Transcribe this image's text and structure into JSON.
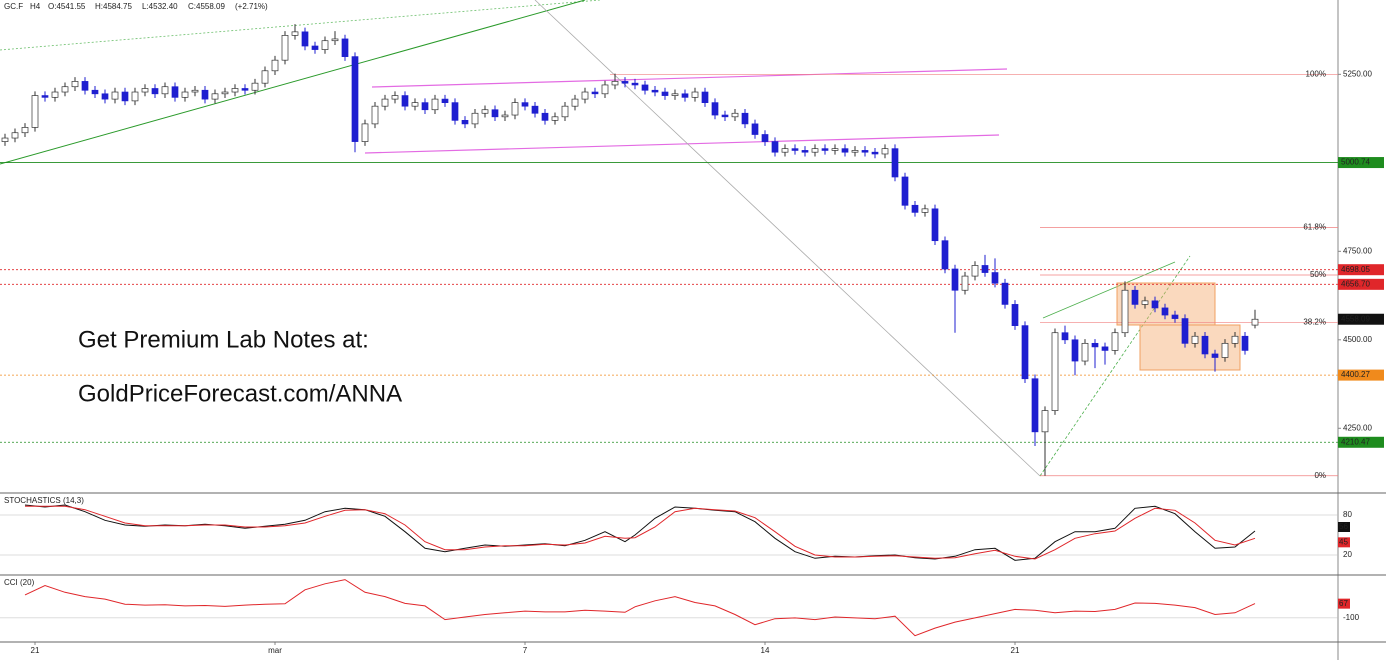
{
  "header": {
    "symbol": "GC.F",
    "timeframe": "H4",
    "ohlc": [
      "O:4541.55",
      "H:4584.75",
      "L:4532.40",
      "C:4558.09"
    ],
    "change": "(+2.71%)"
  },
  "promo": [
    "Get Premium Lab Notes at:",
    "GoldPriceForecast.com/ANNA"
  ],
  "chart_data": [
    {
      "type": "candlestick",
      "categories": [
        null,
        null,
        null,
        "21",
        null,
        null,
        null,
        null,
        null,
        null,
        null,
        null,
        null,
        null,
        null,
        null,
        null,
        null,
        null,
        null,
        null,
        null,
        null,
        null,
        null,
        null,
        null,
        "mar",
        null,
        null,
        null,
        null,
        null,
        null,
        null,
        null,
        null,
        null,
        null,
        null,
        null,
        null,
        null,
        null,
        null,
        null,
        null,
        null,
        null,
        null,
        null,
        null,
        "7",
        null,
        null,
        null,
        null,
        null,
        null,
        null,
        null,
        null,
        null,
        null,
        null,
        null,
        null,
        null,
        null,
        null,
        null,
        null,
        null,
        null,
        null,
        null,
        "14",
        null,
        null,
        null,
        null,
        null,
        null,
        null,
        null,
        null,
        null,
        null,
        null,
        null,
        null,
        null,
        null,
        null,
        null,
        null,
        null,
        null,
        null,
        null,
        null,
        "21",
        null,
        null,
        null,
        null,
        null,
        null,
        null,
        null,
        null,
        null,
        null,
        null,
        null,
        null,
        null,
        null,
        null,
        null,
        null,
        null,
        null,
        null,
        null,
        null
      ],
      "candles": [
        [
          5060,
          5082,
          5048,
          5070
        ],
        [
          5070,
          5097,
          5058,
          5085
        ],
        [
          5085,
          5112,
          5073,
          5100
        ],
        [
          5100,
          5202,
          5088,
          5190
        ],
        [
          5190,
          5202,
          5173,
          5185
        ],
        [
          5185,
          5212,
          5173,
          5200
        ],
        [
          5200,
          5227,
          5188,
          5215
        ],
        [
          5215,
          5242,
          5203,
          5230
        ],
        [
          5230,
          5242,
          5193,
          5205
        ],
        [
          5205,
          5217,
          5183,
          5195
        ],
        [
          5195,
          5207,
          5168,
          5180
        ],
        [
          5180,
          5212,
          5168,
          5200
        ],
        [
          5200,
          5212,
          5163,
          5175
        ],
        [
          5175,
          5212,
          5163,
          5200
        ],
        [
          5200,
          5222,
          5188,
          5210
        ],
        [
          5210,
          5222,
          5183,
          5195
        ],
        [
          5195,
          5227,
          5183,
          5215
        ],
        [
          5215,
          5227,
          5173,
          5185
        ],
        [
          5185,
          5212,
          5173,
          5200
        ],
        [
          5200,
          5217,
          5188,
          5205
        ],
        [
          5205,
          5217,
          5168,
          5180
        ],
        [
          5180,
          5207,
          5168,
          5195
        ],
        [
          5195,
          5212,
          5183,
          5200
        ],
        [
          5200,
          5222,
          5188,
          5210
        ],
        [
          5210,
          5222,
          5193,
          5205
        ],
        [
          5205,
          5237,
          5193,
          5225
        ],
        [
          5225,
          5272,
          5213,
          5260
        ],
        [
          5260,
          5302,
          5248,
          5290
        ],
        [
          5290,
          5372,
          5278,
          5360
        ],
        [
          5360,
          5392,
          5348,
          5370
        ],
        [
          5370,
          5382,
          5318,
          5330
        ],
        [
          5330,
          5342,
          5308,
          5320
        ],
        [
          5320,
          5357,
          5308,
          5345
        ],
        [
          5345,
          5372,
          5333,
          5350
        ],
        [
          5350,
          5362,
          5288,
          5300
        ],
        [
          5300,
          5312,
          5030,
          5060
        ],
        [
          5060,
          5122,
          5048,
          5110
        ],
        [
          5110,
          5172,
          5098,
          5160
        ],
        [
          5160,
          5192,
          5148,
          5180
        ],
        [
          5180,
          5202,
          5168,
          5190
        ],
        [
          5190,
          5202,
          5148,
          5160
        ],
        [
          5160,
          5182,
          5148,
          5170
        ],
        [
          5170,
          5182,
          5138,
          5150
        ],
        [
          5150,
          5192,
          5138,
          5180
        ],
        [
          5180,
          5192,
          5158,
          5170
        ],
        [
          5170,
          5182,
          5108,
          5120
        ],
        [
          5120,
          5132,
          5098,
          5110
        ],
        [
          5110,
          5152,
          5098,
          5140
        ],
        [
          5140,
          5162,
          5128,
          5150
        ],
        [
          5150,
          5162,
          5118,
          5130
        ],
        [
          5130,
          5147,
          5118,
          5135
        ],
        [
          5135,
          5182,
          5123,
          5170
        ],
        [
          5170,
          5182,
          5148,
          5160
        ],
        [
          5160,
          5172,
          5128,
          5140
        ],
        [
          5140,
          5152,
          5108,
          5120
        ],
        [
          5120,
          5142,
          5108,
          5130
        ],
        [
          5130,
          5172,
          5118,
          5160
        ],
        [
          5160,
          5192,
          5148,
          5180
        ],
        [
          5180,
          5212,
          5168,
          5200
        ],
        [
          5200,
          5212,
          5183,
          5195
        ],
        [
          5195,
          5232,
          5183,
          5220
        ],
        [
          5220,
          5252,
          5208,
          5230
        ],
        [
          5230,
          5242,
          5213,
          5225
        ],
        [
          5225,
          5237,
          5208,
          5220
        ],
        [
          5220,
          5232,
          5193,
          5205
        ],
        [
          5205,
          5217,
          5188,
          5200
        ],
        [
          5200,
          5212,
          5178,
          5190
        ],
        [
          5190,
          5207,
          5178,
          5195
        ],
        [
          5195,
          5207,
          5173,
          5185
        ],
        [
          5185,
          5212,
          5173,
          5200
        ],
        [
          5200,
          5212,
          5158,
          5170
        ],
        [
          5170,
          5182,
          5123,
          5135
        ],
        [
          5135,
          5147,
          5118,
          5130
        ],
        [
          5130,
          5152,
          5118,
          5140
        ],
        [
          5140,
          5152,
          5098,
          5110
        ],
        [
          5110,
          5122,
          5068,
          5080
        ],
        [
          5080,
          5092,
          5048,
          5060
        ],
        [
          5060,
          5072,
          5018,
          5030
        ],
        [
          5030,
          5052,
          5018,
          5040
        ],
        [
          5040,
          5052,
          5023,
          5035
        ],
        [
          5035,
          5047,
          5018,
          5030
        ],
        [
          5030,
          5052,
          5018,
          5040
        ],
        [
          5040,
          5052,
          5023,
          5035
        ],
        [
          5035,
          5052,
          5023,
          5040
        ],
        [
          5040,
          5052,
          5018,
          5030
        ],
        [
          5030,
          5047,
          5018,
          5035
        ],
        [
          5035,
          5047,
          5018,
          5030
        ],
        [
          5030,
          5042,
          5013,
          5025
        ],
        [
          5025,
          5052,
          5013,
          5040
        ],
        [
          5040,
          5052,
          4948,
          4960
        ],
        [
          4960,
          4972,
          4868,
          4880
        ],
        [
          4880,
          4892,
          4848,
          4860
        ],
        [
          4860,
          4882,
          4848,
          4870
        ],
        [
          4870,
          4882,
          4768,
          4780
        ],
        [
          4780,
          4792,
          4688,
          4700
        ],
        [
          4700,
          4712,
          4520,
          4640
        ],
        [
          4640,
          4692,
          4628,
          4680
        ],
        [
          4680,
          4722,
          4668,
          4710
        ],
        [
          4710,
          4740,
          4678,
          4690
        ],
        [
          4690,
          4730,
          4648,
          4660
        ],
        [
          4660,
          4672,
          4588,
          4600
        ],
        [
          4600,
          4612,
          4528,
          4540
        ],
        [
          4540,
          4552,
          4378,
          4390
        ],
        [
          4390,
          4402,
          4200,
          4240
        ],
        [
          4240,
          4312,
          4116,
          4300
        ],
        [
          4300,
          4532,
          4288,
          4520
        ],
        [
          4520,
          4540,
          4488,
          4500
        ],
        [
          4500,
          4512,
          4400,
          4440
        ],
        [
          4440,
          4502,
          4428,
          4490
        ],
        [
          4490,
          4502,
          4420,
          4480
        ],
        [
          4480,
          4492,
          4430,
          4470
        ],
        [
          4470,
          4532,
          4458,
          4520
        ],
        [
          4520,
          4665,
          4508,
          4640
        ],
        [
          4640,
          4652,
          4588,
          4600
        ],
        [
          4600,
          4622,
          4588,
          4610
        ],
        [
          4610,
          4622,
          4578,
          4590
        ],
        [
          4590,
          4602,
          4558,
          4570
        ],
        [
          4570,
          4582,
          4548,
          4560
        ],
        [
          4560,
          4572,
          4478,
          4490
        ],
        [
          4490,
          4522,
          4478,
          4510
        ],
        [
          4510,
          4522,
          4448,
          4460
        ],
        [
          4460,
          4472,
          4410,
          4450
        ],
        [
          4450,
          4502,
          4438,
          4490
        ],
        [
          4490,
          4522,
          4478,
          4510
        ],
        [
          4510,
          4522,
          4458,
          4470
        ],
        [
          4541.55,
          4584.75,
          4532.4,
          4558.09
        ]
      ],
      "up_color": "#ffffff",
      "down_color": "#1f1fd0",
      "ylim": [
        4070,
        5460
      ],
      "yticks": [
        {
          "value": 5250,
          "label": "5250.00"
        },
        {
          "value": 4750,
          "label": "4750.00"
        },
        {
          "value": 4500,
          "label": "4500.00"
        },
        {
          "value": 4250,
          "label": "4250.00"
        }
      ],
      "levels": [
        {
          "value": 5000.74,
          "color": "#1e8c1e"
        },
        {
          "value": 4698.05,
          "color": "#e0262a"
        },
        {
          "value": 4656.7,
          "label": "4656.70",
          "color": "#e0262a"
        },
        {
          "value": 4400.27,
          "color": "#f08a1c"
        },
        {
          "value": 4210.47,
          "color": "#1e8c1e"
        }
      ],
      "fib_levels": [
        {
          "value": 5250,
          "label": "100%"
        },
        {
          "value": 4817,
          "label": "61.8%"
        },
        {
          "value": 4683,
          "label": "50%"
        },
        {
          "value": 4549,
          "label": "38.2%"
        },
        {
          "value": 4116,
          "label": "0%"
        }
      ]
    },
    {
      "type": "line",
      "title": "STOCHASTICS (14,3)",
      "ylim": [
        -7,
        110
      ],
      "yticks": [
        80,
        20
      ],
      "series": [
        {
          "color": "#111111",
          "values": [
            95,
            92,
            95,
            85,
            72,
            65,
            63,
            65,
            64,
            66,
            64,
            60,
            63,
            66,
            72,
            85,
            90,
            88,
            78,
            55,
            30,
            25,
            30,
            35,
            33,
            35,
            37,
            34,
            42,
            55,
            40,
            50,
            75,
            92,
            90,
            87,
            85,
            70,
            45,
            25,
            15,
            18,
            17,
            19,
            20,
            16,
            14,
            18,
            28,
            30,
            12,
            15,
            40,
            55,
            55,
            60,
            90,
            93,
            82,
            55,
            30,
            32,
            56
          ]
        },
        {
          "color": "#e0262a",
          "values": [
            93,
            93,
            93,
            88,
            78,
            68,
            64,
            64,
            64,
            65,
            65,
            62,
            62,
            64,
            68,
            78,
            87,
            88,
            82,
            65,
            40,
            28,
            28,
            32,
            34,
            34,
            36,
            35,
            38,
            48,
            45,
            46,
            62,
            85,
            90,
            88,
            86,
            76,
            55,
            33,
            20,
            17,
            17,
            18,
            19,
            17,
            15,
            16,
            22,
            27,
            18,
            14,
            28,
            45,
            52,
            56,
            75,
            90,
            87,
            68,
            42,
            35,
            45
          ]
        }
      ]
    },
    {
      "type": "line",
      "title": "CCI (20)",
      "ylim": [
        -360,
        380
      ],
      "yticks": [
        -100
      ],
      "series": [
        {
          "color": "#e0262a",
          "values": [
            170,
            280,
            200,
            150,
            120,
            60,
            50,
            55,
            40,
            45,
            35,
            50,
            60,
            65,
            230,
            300,
            350,
            200,
            150,
            70,
            40,
            -120,
            -90,
            -60,
            -40,
            -20,
            -30,
            -30,
            -10,
            -20,
            -35,
            30,
            100,
            150,
            80,
            40,
            -60,
            -180,
            -110,
            -100,
            -120,
            -90,
            -100,
            -110,
            -80,
            -310,
            -220,
            -150,
            -100,
            -50,
            0,
            -10,
            -40,
            -20,
            -25,
            0,
            75,
            70,
            50,
            20,
            -60,
            -40,
            67
          ]
        }
      ]
    }
  ]
}
